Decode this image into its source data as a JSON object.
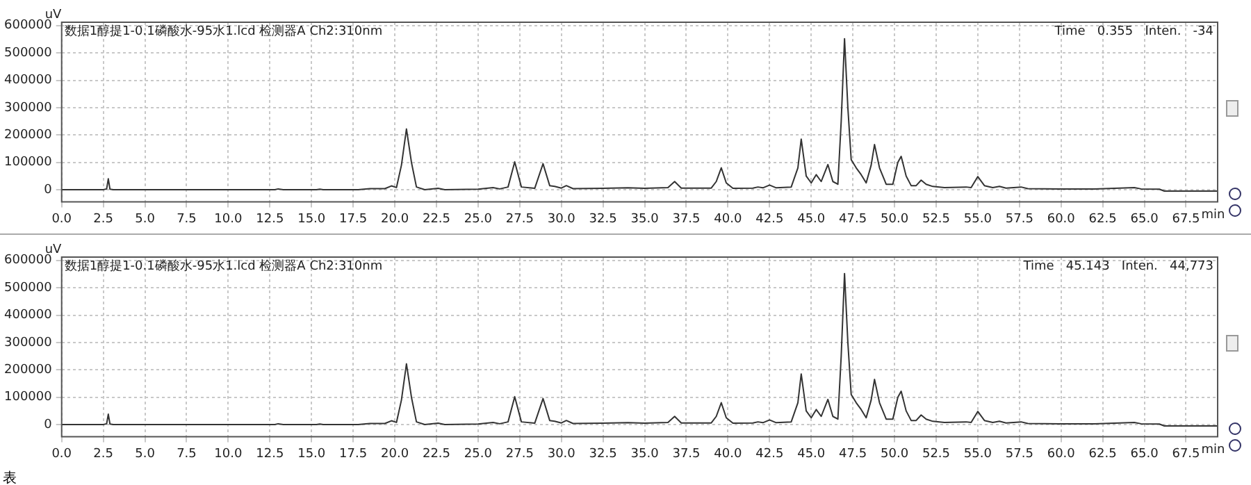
{
  "chart_data": [
    {
      "type": "line",
      "title": "数据1醇提1-0.1磷酸水-95水1.lcd 检测器A Ch2:310nm",
      "ylabel": "uV",
      "xlabel": "min",
      "annotations": [
        "Time   0.355   Inten.   -34"
      ],
      "xlim": [
        0,
        69.4
      ],
      "ylim": [
        -44000,
        612000
      ],
      "xticks": [
        {
          "value": 0,
          "label": "0.0"
        },
        2.5,
        {
          "value": 5,
          "label": "5.0"
        },
        7.5,
        {
          "value": 10,
          "label": "10.0"
        },
        12.5,
        {
          "value": 15,
          "label": "15.0"
        },
        17.5,
        {
          "value": 20,
          "label": "20.0"
        },
        22.5,
        {
          "value": 25,
          "label": "25.0"
        },
        27.5,
        {
          "value": 30,
          "label": "30.0"
        },
        32.5,
        {
          "value": 35,
          "label": "35.0"
        },
        37.5,
        {
          "value": 40,
          "label": "40.0"
        },
        42.5,
        {
          "value": 45,
          "label": "45.0"
        },
        47.5,
        {
          "value": 50,
          "label": "50.0"
        },
        52.5,
        {
          "value": 55,
          "label": "55.0"
        },
        57.5,
        {
          "value": 60,
          "label": "60.0"
        },
        62.5,
        {
          "value": 65,
          "label": "65.0"
        },
        67.5
      ],
      "yticks": [
        0,
        100000,
        200000,
        300000,
        400000,
        500000,
        600000
      ],
      "grid": true,
      "series": [
        {
          "color": "#333333",
          "x": [
            0,
            2.5,
            2.7,
            2.8,
            2.9,
            3.1,
            12.8,
            13,
            13.3,
            15.3,
            15.5,
            15.7,
            17.8,
            18.5,
            19.4,
            19.8,
            20.1,
            20.4,
            20.7,
            21,
            21.3,
            21.8,
            22.6,
            23,
            25,
            25.9,
            26.3,
            26.8,
            27.2,
            27.6,
            28.4,
            28.9,
            29.3,
            29.6,
            30,
            30.3,
            30.7,
            32.5,
            34,
            35,
            36.4,
            36.8,
            37.2,
            39,
            39.3,
            39.6,
            39.9,
            40.3,
            41.5,
            41.8,
            42.1,
            42.5,
            42.9,
            43.8,
            44.2,
            44.4,
            44.7,
            45,
            45.3,
            45.6,
            46,
            46.3,
            46.6,
            46.8,
            47,
            47.2,
            47.4,
            47.7,
            48,
            48.3,
            48.6,
            48.8,
            49.1,
            49.5,
            49.9,
            50.2,
            50.4,
            50.7,
            51,
            51.3,
            51.6,
            51.9,
            52.3,
            53,
            54.3,
            54.6,
            55,
            55.4,
            55.9,
            56.3,
            56.7,
            57.6,
            58,
            60,
            62,
            64.4,
            64.8,
            65.9,
            66.2,
            69.4
          ],
          "values": [
            0,
            0,
            3000,
            40000,
            2000,
            0,
            0,
            3000,
            0,
            0,
            2000,
            0,
            0,
            4000,
            4000,
            14000,
            8000,
            90000,
            222000,
            100000,
            10000,
            0,
            5000,
            0,
            2000,
            8000,
            3000,
            10000,
            102000,
            10000,
            5000,
            95000,
            15000,
            12000,
            6000,
            15000,
            4000,
            5000,
            7000,
            5000,
            8000,
            30000,
            6000,
            6000,
            30000,
            80000,
            25000,
            5000,
            6000,
            10000,
            7000,
            17000,
            7000,
            10000,
            80000,
            185000,
            50000,
            25000,
            55000,
            30000,
            92000,
            30000,
            20000,
            250000,
            552000,
            300000,
            110000,
            80000,
            55000,
            25000,
            90000,
            165000,
            80000,
            20000,
            20000,
            100000,
            122000,
            50000,
            15000,
            15000,
            35000,
            20000,
            12000,
            8000,
            10000,
            8000,
            48000,
            15000,
            8000,
            12000,
            6000,
            10000,
            4000,
            3000,
            3000,
            8000,
            3000,
            2000,
            -5000,
            -5000
          ]
        }
      ]
    },
    {
      "type": "line",
      "title": "数据1醇提1-0.1磷酸水-95水1.lcd 检测器A Ch2:310nm",
      "ylabel": "uV",
      "xlabel": "min",
      "annotations": [
        "Time   45.143   Inten.   44,773",
        "表"
      ],
      "xlim": [
        0,
        69.4
      ],
      "ylim": [
        -44000,
        612000
      ],
      "xticks": [
        {
          "value": 0,
          "label": "0.0"
        },
        2.5,
        {
          "value": 5,
          "label": "5.0"
        },
        7.5,
        {
          "value": 10,
          "label": "10.0"
        },
        12.5,
        {
          "value": 15,
          "label": "15.0"
        },
        17.5,
        {
          "value": 20,
          "label": "20.0"
        },
        22.5,
        {
          "value": 25,
          "label": "25.0"
        },
        27.5,
        {
          "value": 30,
          "label": "30.0"
        },
        32.5,
        {
          "value": 35,
          "label": "35.0"
        },
        37.5,
        {
          "value": 40,
          "label": "40.0"
        },
        42.5,
        {
          "value": 45,
          "label": "45.0"
        },
        47.5,
        {
          "value": 50,
          "label": "50.0"
        },
        52.5,
        {
          "value": 55,
          "label": "55.0"
        },
        57.5,
        {
          "value": 60,
          "label": "60.0"
        },
        62.5,
        {
          "value": 65,
          "label": "65.0"
        },
        67.5
      ],
      "yticks": [
        0,
        100000,
        200000,
        300000,
        400000,
        500000,
        600000
      ],
      "grid": true,
      "series": [
        {
          "color": "#333333",
          "x": [
            0,
            2.5,
            2.7,
            2.8,
            2.9,
            3.1,
            12.8,
            13,
            13.3,
            15.3,
            15.5,
            15.7,
            17.8,
            18.5,
            19.4,
            19.8,
            20.1,
            20.4,
            20.7,
            21,
            21.3,
            21.8,
            22.6,
            23,
            25,
            25.9,
            26.3,
            26.8,
            27.2,
            27.6,
            28.4,
            28.9,
            29.3,
            29.6,
            30,
            30.3,
            30.7,
            32.5,
            34,
            35,
            36.4,
            36.8,
            37.2,
            39,
            39.3,
            39.6,
            39.9,
            40.3,
            41.5,
            41.8,
            42.1,
            42.5,
            42.9,
            43.8,
            44.2,
            44.4,
            44.7,
            45,
            45.3,
            45.6,
            46,
            46.3,
            46.6,
            46.8,
            47,
            47.2,
            47.4,
            47.7,
            48,
            48.3,
            48.6,
            48.8,
            49.1,
            49.5,
            49.9,
            50.2,
            50.4,
            50.7,
            51,
            51.3,
            51.6,
            51.9,
            52.3,
            53,
            54.3,
            54.6,
            55,
            55.4,
            55.9,
            56.3,
            56.7,
            57.6,
            58,
            60,
            62,
            64.4,
            64.8,
            65.9,
            66.2,
            69.4
          ],
          "values": [
            0,
            0,
            3000,
            38000,
            2000,
            0,
            0,
            3000,
            0,
            0,
            2000,
            0,
            0,
            4000,
            4000,
            14000,
            8000,
            90000,
            222000,
            100000,
            10000,
            0,
            5000,
            0,
            2000,
            8000,
            3000,
            10000,
            102000,
            10000,
            5000,
            95000,
            15000,
            12000,
            6000,
            15000,
            4000,
            5000,
            7000,
            5000,
            8000,
            30000,
            6000,
            6000,
            30000,
            80000,
            25000,
            5000,
            6000,
            10000,
            7000,
            17000,
            7000,
            10000,
            80000,
            185000,
            50000,
            25000,
            55000,
            30000,
            92000,
            30000,
            20000,
            250000,
            552000,
            300000,
            110000,
            80000,
            55000,
            25000,
            90000,
            165000,
            80000,
            20000,
            20000,
            100000,
            122000,
            50000,
            15000,
            15000,
            35000,
            20000,
            12000,
            8000,
            10000,
            8000,
            48000,
            15000,
            8000,
            12000,
            6000,
            10000,
            4000,
            3000,
            3000,
            8000,
            3000,
            2000,
            -5000,
            -5000
          ]
        }
      ]
    }
  ]
}
